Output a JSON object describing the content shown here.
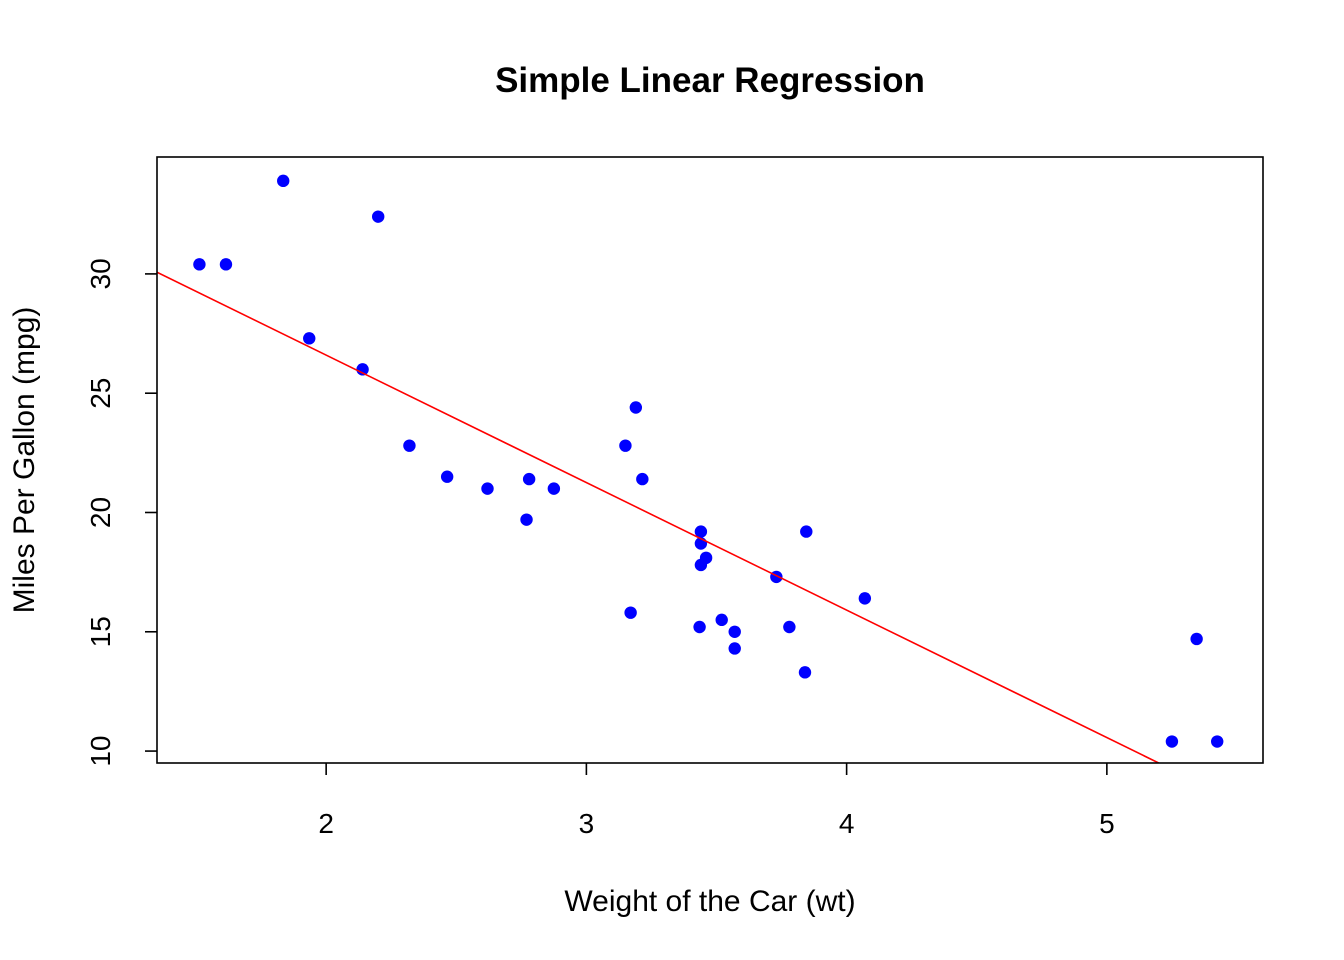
{
  "chart_data": {
    "type": "scatter",
    "title": "Simple Linear Regression",
    "xlabel": "Weight of the Car (wt)",
    "ylabel": "Miles Per Gallon (mpg)",
    "xlim": [
      1.35,
      5.6
    ],
    "ylim": [
      9.5,
      34.9
    ],
    "xticks": [
      2,
      3,
      4,
      5
    ],
    "yticks": [
      10,
      15,
      20,
      25,
      30
    ],
    "grid": false,
    "point_color": "#0000ff",
    "line_color": "#ff0000",
    "points": [
      {
        "x": 2.62,
        "y": 21.0
      },
      {
        "x": 2.875,
        "y": 21.0
      },
      {
        "x": 2.32,
        "y": 22.8
      },
      {
        "x": 3.215,
        "y": 21.4
      },
      {
        "x": 3.44,
        "y": 18.7
      },
      {
        "x": 3.46,
        "y": 18.1
      },
      {
        "x": 3.57,
        "y": 14.3
      },
      {
        "x": 3.19,
        "y": 24.4
      },
      {
        "x": 3.15,
        "y": 22.8
      },
      {
        "x": 3.44,
        "y": 19.2
      },
      {
        "x": 3.44,
        "y": 17.8
      },
      {
        "x": 4.07,
        "y": 16.4
      },
      {
        "x": 3.73,
        "y": 17.3
      },
      {
        "x": 3.78,
        "y": 15.2
      },
      {
        "x": 5.25,
        "y": 10.4
      },
      {
        "x": 5.424,
        "y": 10.4
      },
      {
        "x": 5.345,
        "y": 14.7
      },
      {
        "x": 2.2,
        "y": 32.4
      },
      {
        "x": 1.615,
        "y": 30.4
      },
      {
        "x": 1.835,
        "y": 33.9
      },
      {
        "x": 2.465,
        "y": 21.5
      },
      {
        "x": 3.52,
        "y": 15.5
      },
      {
        "x": 3.435,
        "y": 15.2
      },
      {
        "x": 3.84,
        "y": 13.3
      },
      {
        "x": 3.845,
        "y": 19.2
      },
      {
        "x": 1.935,
        "y": 27.3
      },
      {
        "x": 2.14,
        "y": 26.0
      },
      {
        "x": 1.513,
        "y": 30.4
      },
      {
        "x": 3.17,
        "y": 15.8
      },
      {
        "x": 2.77,
        "y": 19.7
      },
      {
        "x": 3.57,
        "y": 15.0
      },
      {
        "x": 2.78,
        "y": 21.4
      }
    ],
    "regression": {
      "intercept": 37.285,
      "slope": -5.344
    }
  }
}
